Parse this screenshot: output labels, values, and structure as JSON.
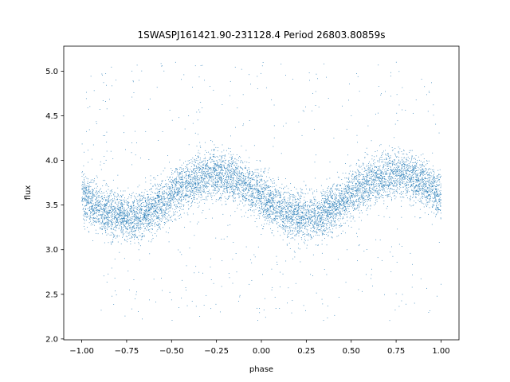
{
  "chart_data": {
    "type": "scatter",
    "title": "1SWASPJ161421.90-231128.4 Period 26803.80859s",
    "xlabel": "phase",
    "ylabel": "flux",
    "xlim": [
      -1.1,
      1.1
    ],
    "ylim": [
      1.99,
      5.28
    ],
    "xticks": [
      -1.0,
      -0.75,
      -0.5,
      -0.25,
      0.0,
      0.25,
      0.5,
      0.75,
      1.0
    ],
    "xtick_labels": [
      "−1.00",
      "−0.75",
      "−0.50",
      "−0.25",
      "0.00",
      "0.25",
      "0.50",
      "0.75",
      "1.00"
    ],
    "yticks": [
      2.0,
      2.5,
      3.0,
      3.5,
      4.0,
      4.5,
      5.0
    ],
    "ytick_labels": [
      "2.0",
      "2.5",
      "3.0",
      "3.5",
      "4.0",
      "4.5",
      "5.0"
    ],
    "grid": false,
    "marker_color": "#1f77b4",
    "model": {
      "description": "sinusoidal light curve",
      "mean": 3.6,
      "amplitude": 0.24,
      "period_in_phase": 1.0,
      "max_phase": -0.25,
      "scatter_sigma": 0.13,
      "outlier_fraction": 0.06,
      "outlier_range": [
        2.2,
        5.1
      ]
    },
    "series": [
      {
        "x": [
          -1.0,
          -0.9,
          -0.8,
          -0.75,
          -0.7,
          -0.6,
          -0.5,
          -0.4,
          -0.3,
          -0.25,
          -0.2,
          -0.1,
          0.0,
          0.1,
          0.2,
          0.25,
          0.3,
          0.4,
          0.5,
          0.6,
          0.7,
          0.75,
          0.8,
          0.9,
          1.0
        ],
        "y": [
          3.6,
          3.46,
          3.39,
          3.37,
          3.39,
          3.46,
          3.6,
          3.74,
          3.83,
          3.85,
          3.83,
          3.74,
          3.6,
          3.46,
          3.39,
          3.37,
          3.39,
          3.46,
          3.6,
          3.74,
          3.83,
          3.85,
          3.83,
          3.74,
          3.6
        ]
      }
    ],
    "n_points": 9000
  }
}
